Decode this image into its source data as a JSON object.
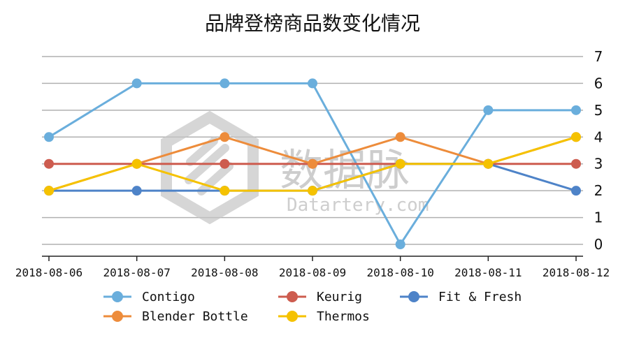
{
  "chart_data": {
    "type": "line",
    "title": "品牌登榜商品数变化情况",
    "categories": [
      "2018-08-06",
      "2018-08-07",
      "2018-08-08",
      "2018-08-09",
      "2018-08-10",
      "2018-08-11",
      "2018-08-12"
    ],
    "ylim": [
      0,
      7
    ],
    "yticks": [
      0,
      1,
      2,
      3,
      4,
      5,
      6,
      7
    ],
    "y_axis_side": "right",
    "grid": true,
    "legend_position": "bottom",
    "series": [
      {
        "name": "Contigo",
        "color": "#6aaedc",
        "values": [
          4,
          6,
          6,
          6,
          0,
          5,
          5
        ]
      },
      {
        "name": "Keurig",
        "color": "#cd5c4f",
        "values": [
          3,
          3,
          3,
          3,
          3,
          3,
          3
        ]
      },
      {
        "name": "Fit & Fresh",
        "color": "#4e83c8",
        "values": [
          2,
          2,
          2,
          2,
          3,
          3,
          2
        ]
      },
      {
        "name": "Blender Bottle",
        "color": "#ed8c3b",
        "values": [
          2,
          3,
          4,
          3,
          4,
          3,
          4
        ]
      },
      {
        "name": "Thermos",
        "color": "#f5c200",
        "values": [
          2,
          3,
          2,
          2,
          3,
          3,
          4
        ]
      }
    ]
  },
  "watermark": {
    "cn": "数据脉",
    "en": "Datartery.com"
  }
}
